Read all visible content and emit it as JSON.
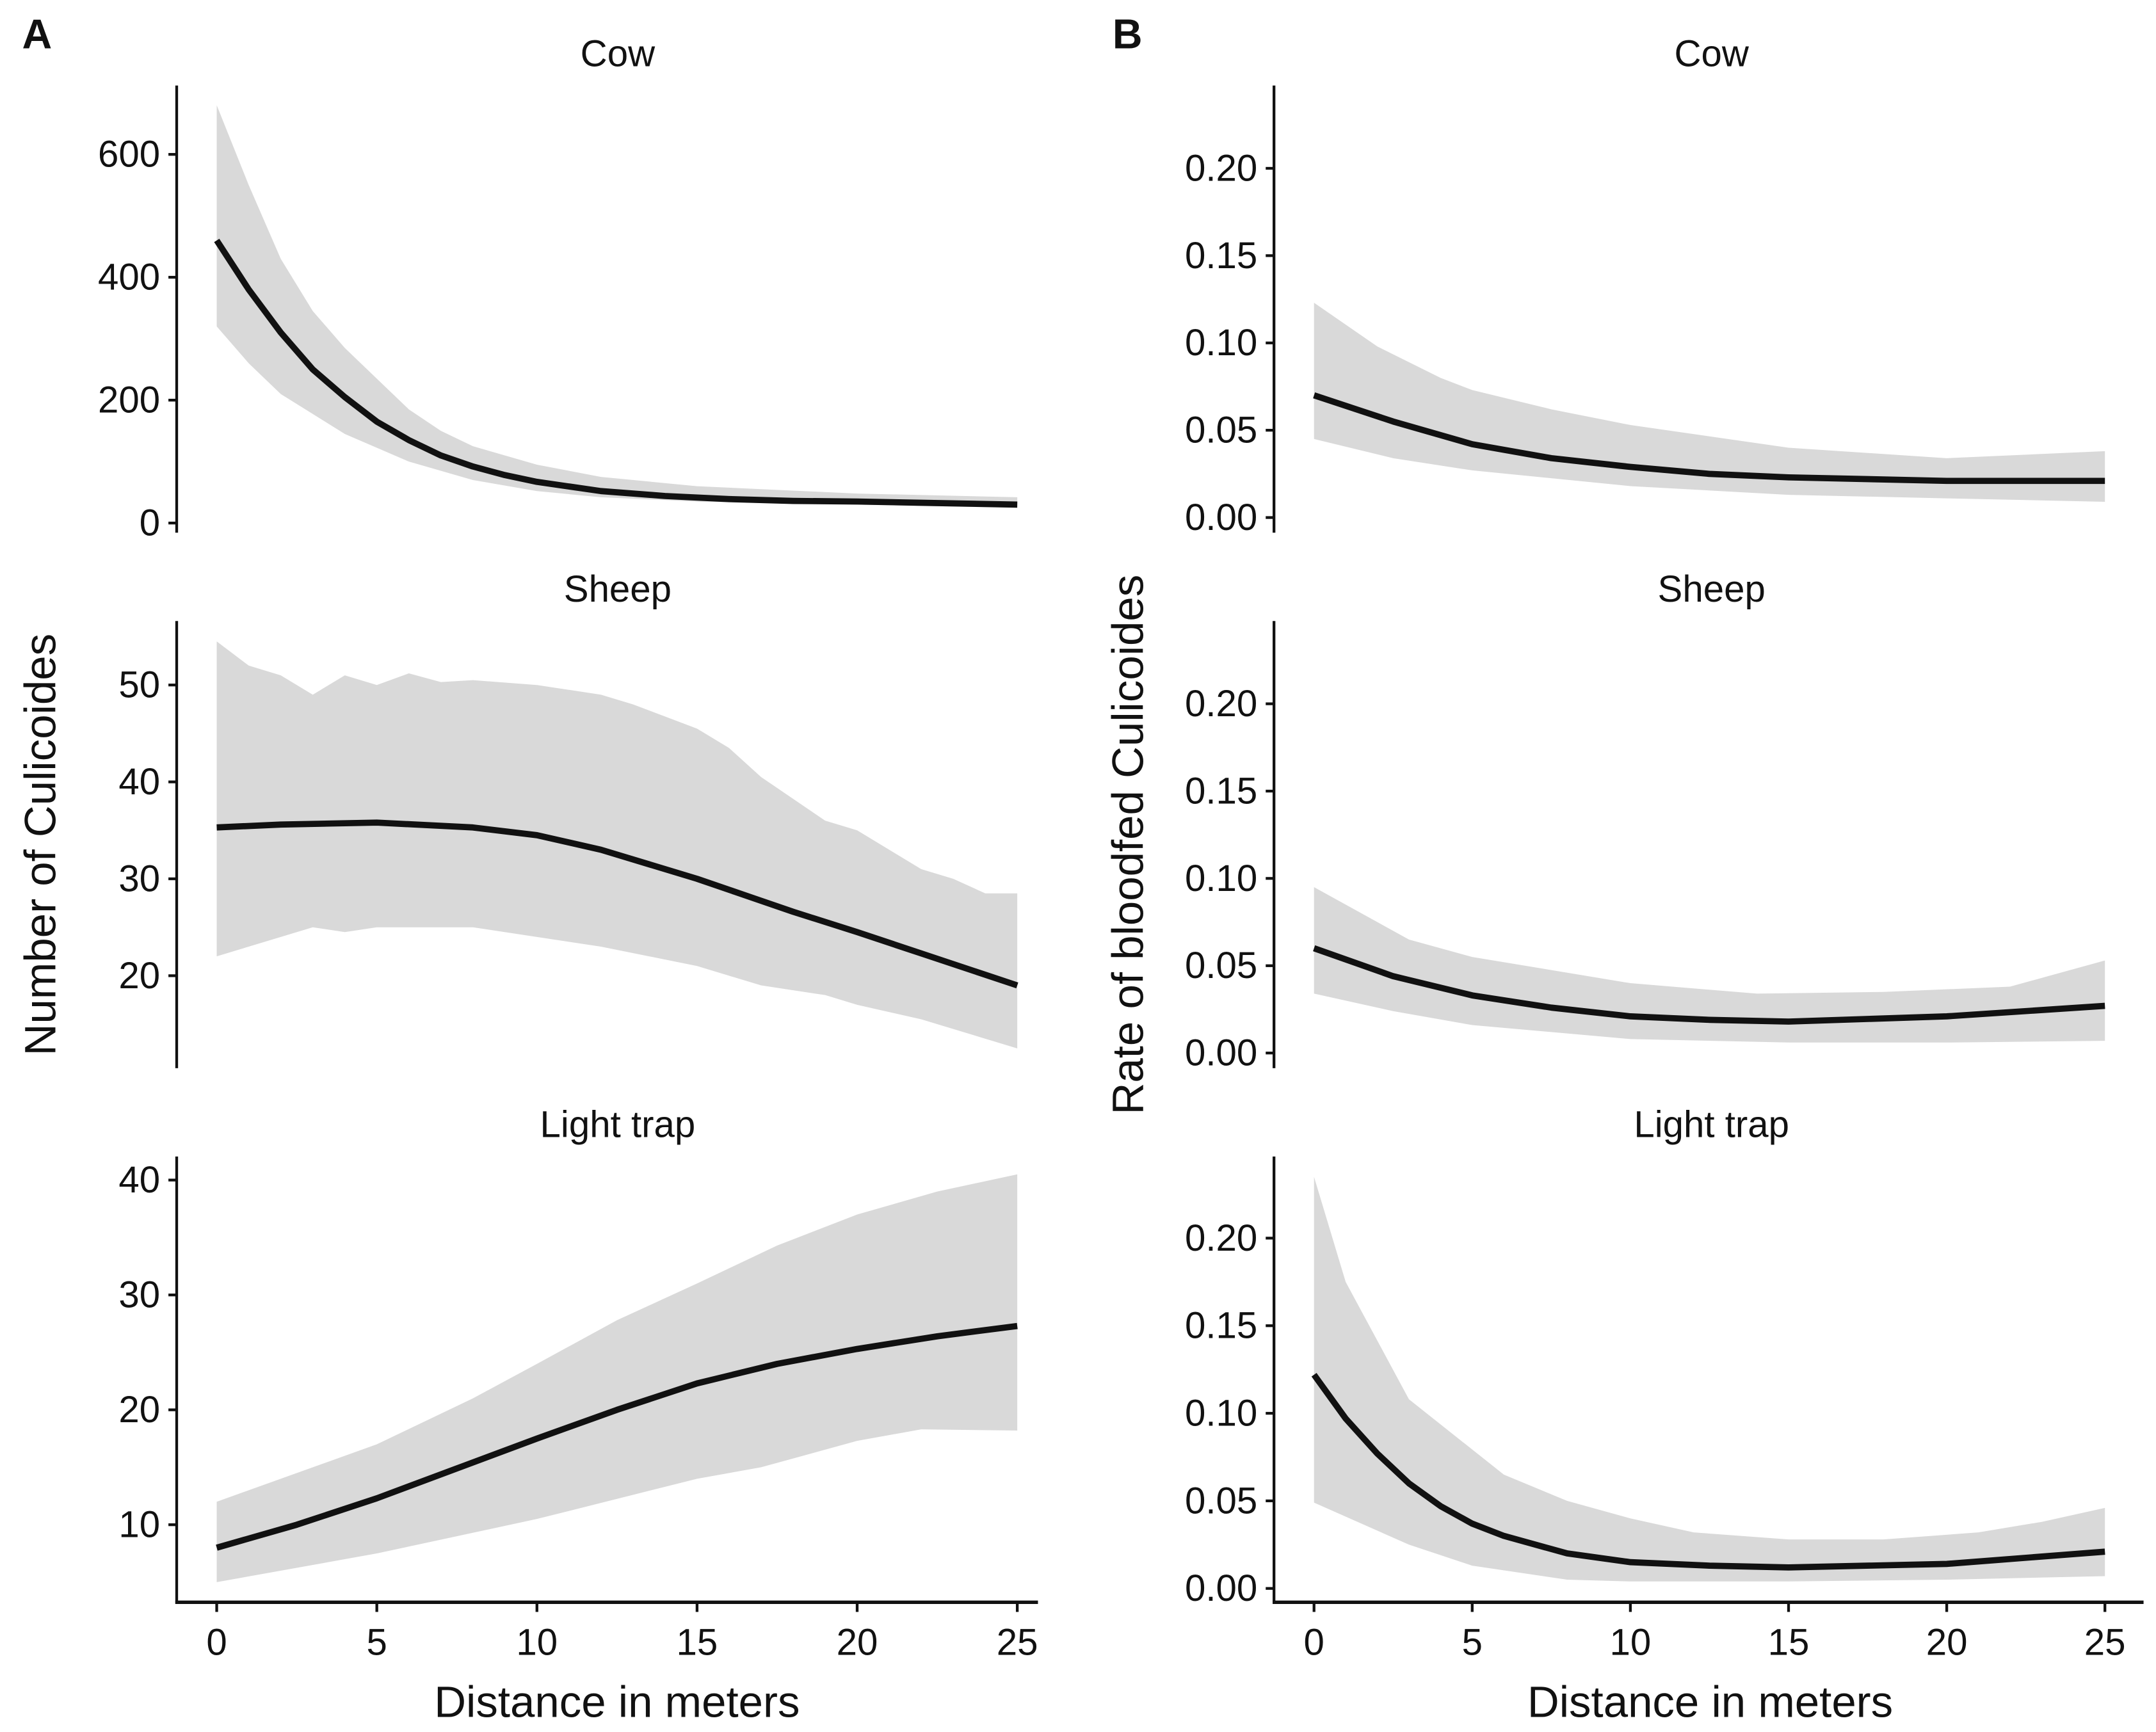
{
  "panel_labels": [
    "A",
    "B"
  ],
  "xlabel": "Distance in meters",
  "ylabels": {
    "A": "Number of Culicoides",
    "B": "Rate of bloodfed Culicoides"
  },
  "colors": {
    "line": "#111111",
    "ribbon": "#d9d9d9"
  },
  "chart_data": [
    {
      "type": "line",
      "group": "A",
      "title": "Cow",
      "xlim": [
        0,
        25
      ],
      "xticks": [
        0,
        5,
        10,
        15,
        20,
        25
      ],
      "ylim": [
        -13.5,
        712
      ],
      "yticks": [
        0,
        200,
        400,
        600
      ],
      "ytick_labels": [
        "0",
        "200",
        "400",
        "600"
      ],
      "mean": {
        "x": [
          0,
          1,
          2,
          3,
          4,
          5,
          6,
          7,
          8,
          9,
          10,
          12,
          14,
          16,
          18,
          20,
          22,
          25
        ],
        "y": [
          460,
          380,
          310,
          250,
          205,
          165,
          135,
          110,
          92,
          78,
          67,
          52,
          44,
          39,
          36,
          35,
          33,
          30
        ]
      },
      "lower": {
        "x": [
          0,
          1,
          2,
          4,
          6,
          8,
          10,
          12,
          15,
          20,
          25
        ],
        "y": [
          320,
          260,
          210,
          145,
          100,
          70,
          52,
          42,
          35,
          30,
          25
        ]
      },
      "upper": {
        "x": [
          0,
          1,
          2,
          3,
          4,
          5,
          6,
          7,
          8,
          10,
          12,
          15,
          20,
          25
        ],
        "y": [
          680,
          550,
          430,
          345,
          285,
          235,
          185,
          150,
          125,
          95,
          75,
          60,
          48,
          42
        ]
      }
    },
    {
      "type": "line",
      "group": "A",
      "title": "Sheep",
      "xlim": [
        0,
        25
      ],
      "xticks": [
        0,
        5,
        10,
        15,
        20,
        25
      ],
      "ylim": [
        10.6,
        56.6
      ],
      "yticks": [
        20,
        30,
        40,
        50
      ],
      "ytick_labels": [
        "20",
        "30",
        "40",
        "50"
      ],
      "mean": {
        "x": [
          0,
          2,
          5,
          8,
          10,
          12,
          15,
          18,
          20,
          22,
          25
        ],
        "y": [
          35.3,
          35.6,
          35.8,
          35.3,
          34.5,
          33,
          30,
          26.6,
          24.5,
          22.3,
          19
        ]
      },
      "lower": {
        "x": [
          0,
          3,
          4,
          5,
          8,
          10,
          12,
          15,
          17,
          19,
          20,
          22,
          25
        ],
        "y": [
          22,
          25,
          24.5,
          25,
          25,
          24,
          23,
          21,
          19,
          18,
          17,
          15.5,
          12.5
        ]
      },
      "upper": {
        "x": [
          0,
          1,
          2,
          3,
          4,
          5,
          6,
          7,
          8,
          10,
          12,
          13,
          15,
          16,
          17,
          19,
          20,
          22,
          23,
          24,
          25
        ],
        "y": [
          54.5,
          52,
          51,
          49,
          51,
          50,
          51.2,
          50.3,
          50.5,
          50,
          49,
          48,
          45.5,
          43.5,
          40.5,
          36,
          35,
          31,
          30,
          28.5,
          28.5
        ]
      }
    },
    {
      "type": "line",
      "group": "A",
      "title": "Light trap",
      "xlim": [
        0,
        25
      ],
      "xticks": [
        0,
        5,
        10,
        15,
        20,
        25
      ],
      "ylim": [
        3.25,
        42.05
      ],
      "yticks": [
        10,
        20,
        30,
        40
      ],
      "ytick_labels": [
        "10",
        "20",
        "30",
        "40"
      ],
      "mean": {
        "x": [
          0,
          2.5,
          5,
          7.5,
          10,
          12.5,
          15,
          17.5,
          20,
          22.5,
          25
        ],
        "y": [
          8,
          10,
          12.3,
          14.9,
          17.5,
          20,
          22.3,
          24,
          25.3,
          26.4,
          27.3
        ]
      },
      "lower": {
        "x": [
          0,
          5,
          10,
          15,
          17,
          20,
          22,
          25
        ],
        "y": [
          5,
          7.5,
          10.5,
          14,
          15,
          17.3,
          18.3,
          18.2
        ]
      },
      "upper": {
        "x": [
          0,
          5,
          8,
          10,
          12.5,
          15,
          17.5,
          20,
          22.5,
          25
        ],
        "y": [
          12,
          17,
          21,
          24,
          27.8,
          31,
          34.3,
          37,
          39,
          40.5
        ]
      }
    },
    {
      "type": "line",
      "group": "B",
      "title": "Cow",
      "xlim": [
        0,
        25
      ],
      "xticks": [
        0,
        5,
        10,
        15,
        20,
        25
      ],
      "ylim": [
        -0.0079,
        0.2474
      ],
      "yticks": [
        0,
        0.05,
        0.1,
        0.15,
        0.2
      ],
      "ytick_labels": [
        "0.00",
        "0.05",
        "0.10",
        "0.15",
        "0.20"
      ],
      "mean": {
        "x": [
          0,
          2.5,
          5,
          7.5,
          10,
          12.5,
          15,
          20,
          25
        ],
        "y": [
          0.07,
          0.055,
          0.042,
          0.034,
          0.029,
          0.025,
          0.023,
          0.021,
          0.021
        ]
      },
      "lower": {
        "x": [
          0,
          2.5,
          5,
          10,
          15,
          20,
          25
        ],
        "y": [
          0.045,
          0.034,
          0.027,
          0.018,
          0.013,
          0.011,
          0.009
        ]
      },
      "upper": {
        "x": [
          0,
          2,
          4,
          5,
          7.5,
          10,
          15,
          20,
          25
        ],
        "y": [
          0.123,
          0.098,
          0.08,
          0.073,
          0.062,
          0.053,
          0.04,
          0.034,
          0.038
        ]
      }
    },
    {
      "type": "line",
      "group": "B",
      "title": "Sheep",
      "xlim": [
        0,
        25
      ],
      "xticks": [
        0,
        5,
        10,
        15,
        20,
        25
      ],
      "ylim": [
        -0.0079,
        0.2474
      ],
      "yticks": [
        0,
        0.05,
        0.1,
        0.15,
        0.2
      ],
      "ytick_labels": [
        "0.00",
        "0.05",
        "0.10",
        "0.15",
        "0.20"
      ],
      "mean": {
        "x": [
          0,
          2.5,
          5,
          7.5,
          10,
          12.5,
          15,
          20,
          25
        ],
        "y": [
          0.06,
          0.044,
          0.033,
          0.026,
          0.021,
          0.019,
          0.018,
          0.021,
          0.027
        ]
      },
      "lower": {
        "x": [
          0,
          2.5,
          5,
          10,
          15,
          20,
          25
        ],
        "y": [
          0.034,
          0.024,
          0.016,
          0.008,
          0.006,
          0.006,
          0.007
        ]
      },
      "upper": {
        "x": [
          0,
          3,
          5,
          10,
          14,
          18,
          22,
          25
        ],
        "y": [
          0.095,
          0.065,
          0.055,
          0.04,
          0.034,
          0.035,
          0.038,
          0.053
        ]
      }
    },
    {
      "type": "line",
      "group": "B",
      "title": "Light trap",
      "xlim": [
        0,
        25
      ],
      "xticks": [
        0,
        5,
        10,
        15,
        20,
        25
      ],
      "ylim": [
        -0.0079,
        0.2466
      ],
      "yticks": [
        0,
        0.05,
        0.1,
        0.15,
        0.2
      ],
      "ytick_labels": [
        "0.00",
        "0.05",
        "0.10",
        "0.15",
        "0.20"
      ],
      "mean": {
        "x": [
          0,
          1,
          2,
          3,
          4,
          5,
          6,
          8,
          10,
          12.5,
          15,
          20,
          25
        ],
        "y": [
          0.122,
          0.097,
          0.077,
          0.06,
          0.047,
          0.037,
          0.03,
          0.02,
          0.015,
          0.013,
          0.012,
          0.014,
          0.021
        ]
      },
      "lower": {
        "x": [
          0,
          3,
          5,
          8,
          10,
          15,
          20,
          25
        ],
        "y": [
          0.049,
          0.025,
          0.013,
          0.005,
          0.004,
          0.004,
          0.005,
          0.007
        ]
      },
      "upper": {
        "x": [
          0,
          1,
          3,
          6,
          8,
          10,
          12,
          15,
          18,
          21,
          23,
          25
        ],
        "y": [
          0.235,
          0.175,
          0.108,
          0.065,
          0.05,
          0.04,
          0.032,
          0.028,
          0.028,
          0.032,
          0.038,
          0.046
        ]
      }
    }
  ]
}
